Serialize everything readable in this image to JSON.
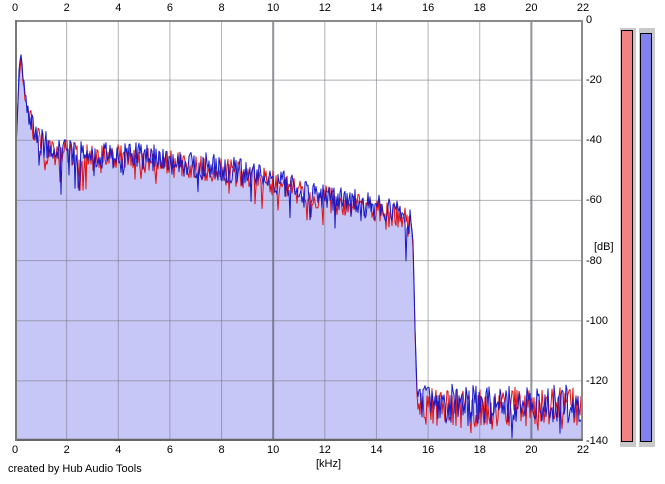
{
  "footer": {
    "credit": "created by Hub Audio Tools"
  },
  "chart_data": {
    "type": "line",
    "title": "",
    "xlabel": "[kHz]",
    "ylabel": "[dB]",
    "xlim": [
      0,
      22
    ],
    "ylim": [
      -140,
      0
    ],
    "x_ticks": [
      0,
      2,
      4,
      6,
      8,
      10,
      12,
      14,
      16,
      18,
      20,
      22
    ],
    "x_major_ticks": [
      10,
      20
    ],
    "y_ticks": [
      0,
      -20,
      -40,
      -60,
      -80,
      -100,
      -120,
      -140
    ],
    "grid": true,
    "legend": "none",
    "tick_label_positions": [
      "top",
      "bottom",
      "right"
    ],
    "description": "Audio frequency spectrum of two overlaid channels; low-frequency peak near -12 dB at ~0.25 kHz, noise band sloping from ~-44 dB to ~-67 dB, sharp cutoff at ~15.5 kHz, noise floor ~-128 dB out to 22 kHz",
    "cutoff_khz": 15.5,
    "noise_floor_db": -128,
    "noise": {
      "band_db": 9,
      "dip_chance": 0.1,
      "dip_extra_db": 11,
      "floor_band_db": 13,
      "floor_dip_chance": 0.1,
      "floor_dip_extra_db": 8
    },
    "series": [
      {
        "name": "spectrum-left-channel",
        "color": "#e01010",
        "seed": 901,
        "offset_db": -1,
        "fill": null,
        "envelope_db": [
          [
            0,
            -52
          ],
          [
            0.08,
            -34
          ],
          [
            0.16,
            -16
          ],
          [
            0.24,
            -12
          ],
          [
            0.32,
            -20
          ],
          [
            0.45,
            -28
          ],
          [
            0.6,
            -33
          ],
          [
            0.8,
            -37
          ],
          [
            1.1,
            -41
          ],
          [
            1.6,
            -43
          ],
          [
            2.5,
            -44
          ],
          [
            3.5,
            -45
          ],
          [
            4.5,
            -45
          ],
          [
            5.5,
            -46
          ],
          [
            6.5,
            -47.5
          ],
          [
            7.5,
            -48.5
          ],
          [
            8.5,
            -50
          ],
          [
            9.5,
            -52
          ],
          [
            10.2,
            -54
          ],
          [
            11,
            -56.5
          ],
          [
            12,
            -58.5
          ],
          [
            13,
            -60.5
          ],
          [
            14,
            -62.5
          ],
          [
            15,
            -65
          ],
          [
            15.35,
            -67.5
          ],
          [
            15.42,
            -75
          ],
          [
            15.5,
            -105
          ],
          [
            15.58,
            -126
          ],
          [
            16,
            -128
          ],
          [
            17,
            -127.5
          ],
          [
            18,
            -128
          ],
          [
            19,
            -127.5
          ],
          [
            20,
            -128
          ],
          [
            21,
            -127.5
          ],
          [
            22,
            -127.5
          ]
        ]
      },
      {
        "name": "spectrum-right-channel",
        "color": "#1818c8",
        "seed": 417,
        "offset_db": 0,
        "fill": "#c7c7f7",
        "envelope_db": [
          [
            0,
            -52
          ],
          [
            0.08,
            -34
          ],
          [
            0.16,
            -16
          ],
          [
            0.24,
            -12
          ],
          [
            0.32,
            -20
          ],
          [
            0.45,
            -28
          ],
          [
            0.6,
            -33
          ],
          [
            0.8,
            -37
          ],
          [
            1.1,
            -41
          ],
          [
            1.6,
            -43
          ],
          [
            2.5,
            -44
          ],
          [
            3.5,
            -45
          ],
          [
            4.5,
            -45
          ],
          [
            5.5,
            -46
          ],
          [
            6.5,
            -47.5
          ],
          [
            7.5,
            -48.5
          ],
          [
            8.5,
            -50
          ],
          [
            9.5,
            -52
          ],
          [
            10.2,
            -54
          ],
          [
            11,
            -56.5
          ],
          [
            12,
            -58.5
          ],
          [
            13,
            -60.5
          ],
          [
            14,
            -62.5
          ],
          [
            15,
            -65
          ],
          [
            15.35,
            -67.5
          ],
          [
            15.42,
            -75
          ],
          [
            15.5,
            -105
          ],
          [
            15.58,
            -126
          ],
          [
            16,
            -128
          ],
          [
            17,
            -127.5
          ],
          [
            18,
            -128
          ],
          [
            19,
            -127.5
          ],
          [
            20,
            -128
          ],
          [
            21,
            -127.5
          ],
          [
            22,
            -127.5
          ]
        ]
      }
    ]
  },
  "meters": {
    "track_color": "#c9c9c9",
    "items": [
      {
        "name": "level-meter-left",
        "color": "#f28282",
        "peak_db": -0.7
      },
      {
        "name": "level-meter-right",
        "color": "#8282ee",
        "peak_db": -1.7
      }
    ]
  },
  "colors": {
    "background": "#ffffff",
    "grid": "#73737c",
    "grid_major": "#4a4a55",
    "border": "#8a8a8a",
    "border_bottom": "#666666",
    "fill": "#c7c7f7"
  }
}
